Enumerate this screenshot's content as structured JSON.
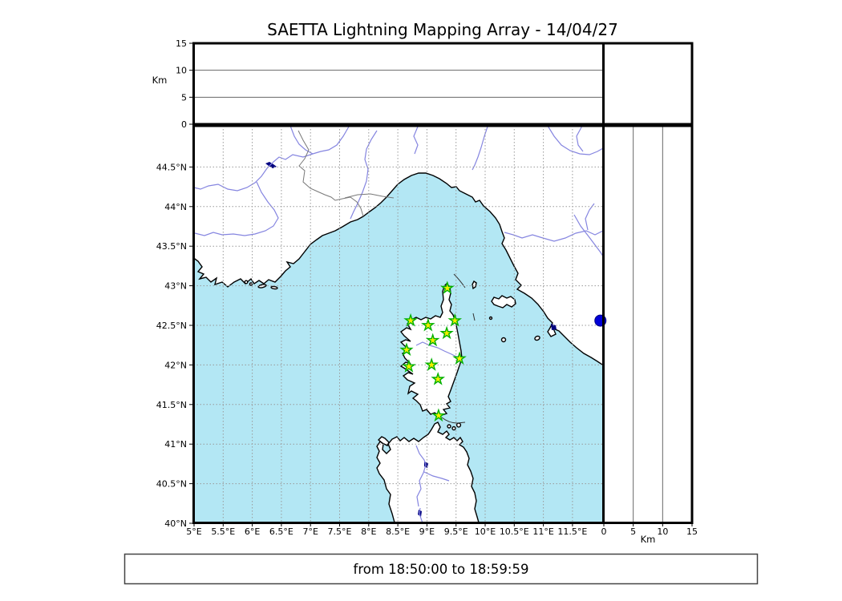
{
  "title": "SAETTA Lightning Mapping Array - 14/04/27",
  "footer": {
    "text": "from 18:50:00 to 18:59:59"
  },
  "axes": {
    "altitude": {
      "unit_label": "Km",
      "ticks": [
        0,
        5,
        10,
        15
      ],
      "max": 15,
      "gridline_ticks": [
        5,
        10
      ]
    },
    "longitude": {
      "ticks": [
        {
          "value": 5,
          "label": "5°E"
        },
        {
          "value": 5.5,
          "label": "5.5°E"
        },
        {
          "value": 6,
          "label": "6°E"
        },
        {
          "value": 6.5,
          "label": "6.5°E"
        },
        {
          "value": 7,
          "label": "7°E"
        },
        {
          "value": 7.5,
          "label": "7.5°E"
        },
        {
          "value": 8,
          "label": "8°E"
        },
        {
          "value": 8.5,
          "label": "8.5°E"
        },
        {
          "value": 9,
          "label": "9°E"
        },
        {
          "value": 9.5,
          "label": "9.5°E"
        },
        {
          "value": 10,
          "label": "10°E"
        },
        {
          "value": 10.5,
          "label": "10.5°E"
        },
        {
          "value": 11,
          "label": "11°E"
        },
        {
          "value": 11.5,
          "label": "11.5°E"
        }
      ],
      "range": [
        5,
        12.05
      ]
    },
    "latitude": {
      "ticks": [
        {
          "value": 44.5,
          "label": "44.5°N"
        },
        {
          "value": 44,
          "label": "44°N"
        },
        {
          "value": 43.5,
          "label": "43.5°N"
        },
        {
          "value": 43,
          "label": "43°N"
        },
        {
          "value": 42.5,
          "label": "42.5°N"
        },
        {
          "value": 42,
          "label": "42°N"
        },
        {
          "value": 41.5,
          "label": "41.5°N"
        },
        {
          "value": 41,
          "label": "41°N"
        },
        {
          "value": 40.5,
          "label": "40.5°N"
        },
        {
          "value": 40,
          "label": "40°N"
        }
      ],
      "range": [
        40,
        45
      ]
    }
  },
  "stations": [
    {
      "lon": 9.35,
      "lat": 42.97
    },
    {
      "lon": 8.72,
      "lat": 42.56
    },
    {
      "lon": 9.02,
      "lat": 42.5
    },
    {
      "lon": 9.48,
      "lat": 42.56
    },
    {
      "lon": 9.34,
      "lat": 42.4
    },
    {
      "lon": 9.1,
      "lat": 42.31
    },
    {
      "lon": 8.65,
      "lat": 42.19
    },
    {
      "lon": 9.56,
      "lat": 42.08
    },
    {
      "lon": 8.69,
      "lat": 41.98
    },
    {
      "lon": 9.08,
      "lat": 42.0
    },
    {
      "lon": 9.19,
      "lat": 41.82
    },
    {
      "lon": 9.2,
      "lat": 41.36
    }
  ],
  "event_dot": {
    "lon": 11.98,
    "lat": 42.56
  },
  "colors": {
    "sea": "#b3e7f4",
    "land": "#ffffff",
    "coastline": "#000000",
    "river": "#8585e0",
    "political_border": "#787878",
    "grid": "#999999",
    "panel_grid": "#666666",
    "station_fill": "#f5ee00",
    "station_edge": "#00b000",
    "event_dot": "#0000d8",
    "lake": "#000080"
  }
}
